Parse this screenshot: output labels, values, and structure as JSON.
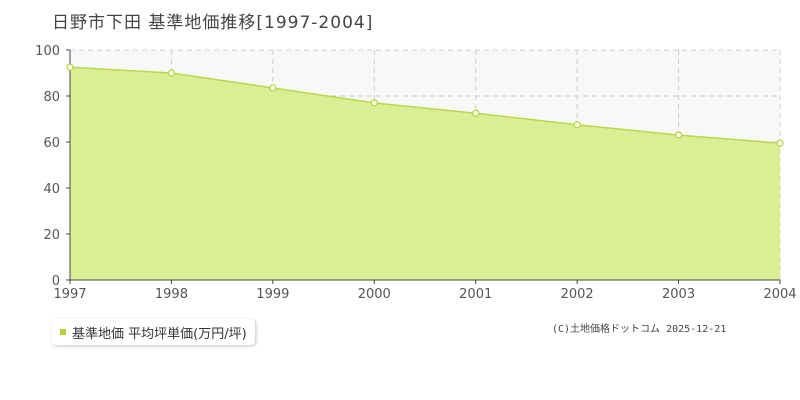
{
  "chart_data": {
    "type": "area",
    "title": "日野市下田  基準地価推移[1997-2004]",
    "x": [
      "1997",
      "1998",
      "1999",
      "2000",
      "2001",
      "2002",
      "2003",
      "2004"
    ],
    "series": [
      {
        "name": "基準地価 平均坪単価(万円/坪)",
        "values": [
          92.5,
          90.0,
          83.5,
          77.0,
          72.5,
          67.5,
          63.0,
          59.5
        ]
      }
    ],
    "yticks": [
      "0",
      "20",
      "40",
      "60",
      "80",
      "100"
    ],
    "ylim": [
      0,
      100
    ],
    "grid": true,
    "legend_position": "bottom-left",
    "colors": {
      "fill": "#dcee95",
      "line": "#b9d84a",
      "marker_stroke": "#b5d334",
      "grid": "#cccccc",
      "plot_background": "#f8f8f8"
    }
  },
  "legend": {
    "label": "基準地価 平均坪単価(万円/坪)"
  },
  "copyright": "(C)土地価格ドットコム 2025-12-21"
}
